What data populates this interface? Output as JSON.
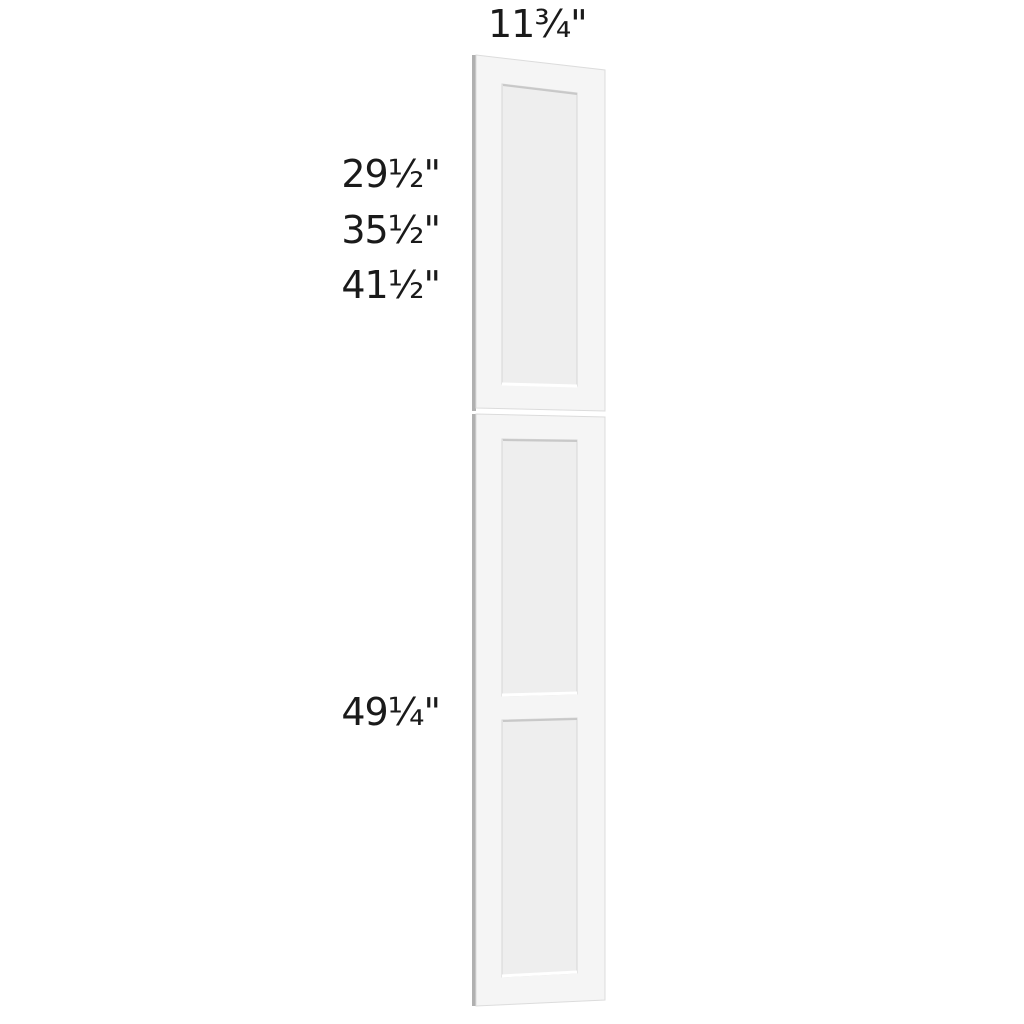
{
  "dimensions": {
    "width": "11¾\"",
    "heights": [
      "29½\"",
      "35½\"",
      "41½\""
    ],
    "lower_height": "49¼\""
  },
  "colors": {
    "door_face": "#f4f4f4",
    "panel": "#ededed",
    "edge_shadow": "#b8b8b8"
  }
}
